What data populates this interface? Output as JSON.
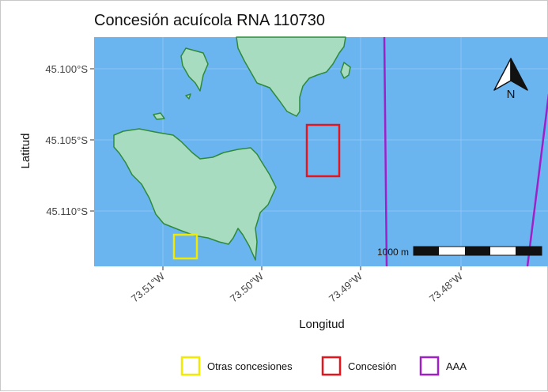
{
  "title": "Concesión acuícola RNA 110730",
  "axes": {
    "xlabel": "Longitud",
    "ylabel": "Latitud",
    "x_ticks": [
      "73.51°W",
      "73.50°W",
      "73.49°W",
      "73.48°W"
    ],
    "y_ticks": [
      "45.100°S",
      "45.105°S",
      "45.110°S"
    ]
  },
  "scalebar": {
    "label": "1000 m"
  },
  "north_arrow": {
    "label": "N",
    "icon": "north-arrow-icon"
  },
  "legend": {
    "items": [
      {
        "label": "Otras concesiones",
        "color": "#f2ea00"
      },
      {
        "label": "Concesión",
        "color": "#e8141c"
      },
      {
        "label": "AAA",
        "color": "#a020c8"
      }
    ]
  },
  "colors": {
    "water": "#6ab4f0",
    "land_fill": "#a8dcc0",
    "land_stroke": "#2e8a3a"
  }
}
